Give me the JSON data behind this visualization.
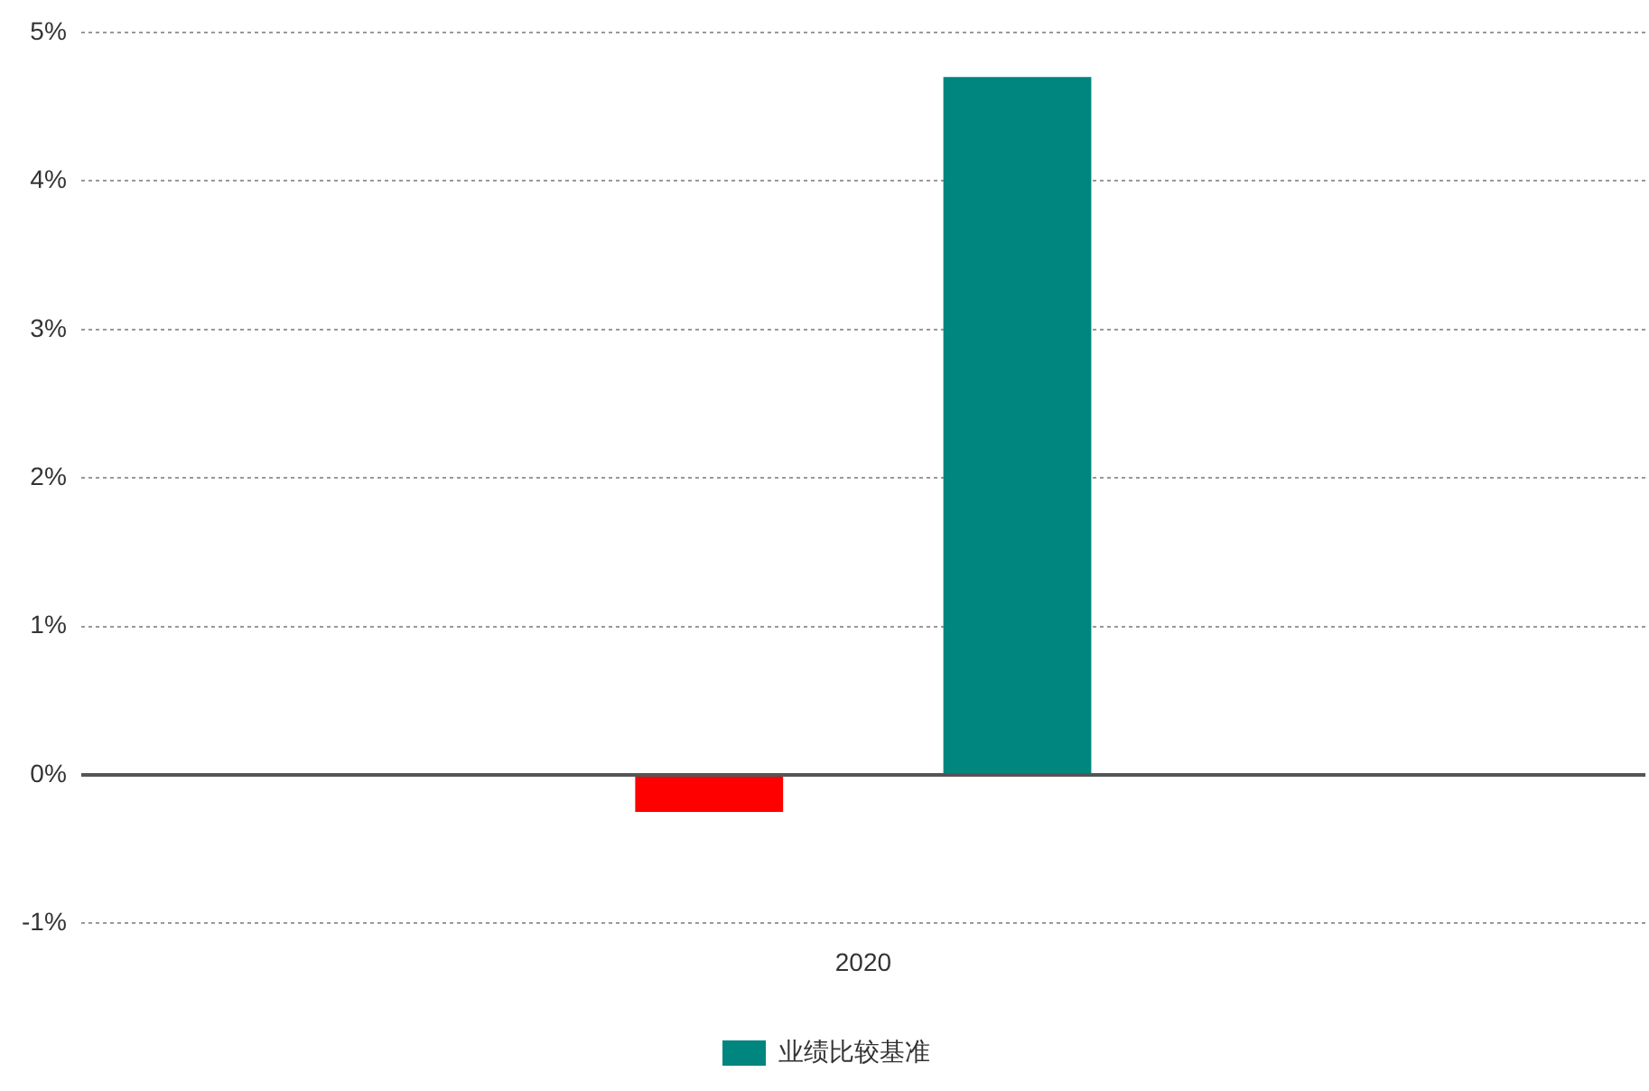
{
  "chart_data": {
    "type": "bar",
    "categories": [
      "2020"
    ],
    "series": [
      {
        "color": "#ff0000",
        "values": [
          -0.25
        ]
      },
      {
        "name": "业绩比较基准",
        "color": "#00857f",
        "values": [
          4.7
        ]
      }
    ],
    "ylim": [
      -1,
      5
    ],
    "yticks": [
      {
        "value": -1,
        "label": "-1%"
      },
      {
        "value": 0,
        "label": "0%"
      },
      {
        "value": 1,
        "label": "1%"
      },
      {
        "value": 2,
        "label": "2%"
      },
      {
        "value": 3,
        "label": "3%"
      },
      {
        "value": 4,
        "label": "4%"
      },
      {
        "value": 5,
        "label": "5%"
      }
    ],
    "grid": "y",
    "legend": "bottom"
  }
}
